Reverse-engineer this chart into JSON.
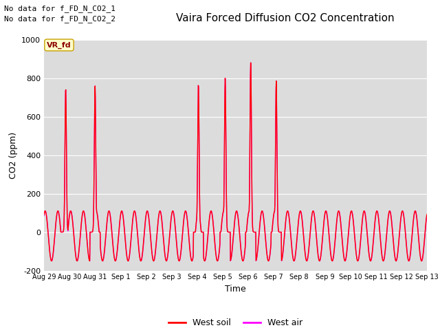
{
  "title": "Vaira Forced Diffusion CO2 Concentration",
  "xlabel": "Time",
  "ylabel": "CO2 (ppm)",
  "ylim": [
    -200,
    1000
  ],
  "bg_color": "#dcdcdc",
  "grid_color": "white",
  "annotation_lines": [
    "No data for f_FD_N_CO2_1",
    "No data for f_FD_N_CO2_2"
  ],
  "vr_fd_label": "VR_fd",
  "west_soil_color": "#ff0000",
  "west_air_color": "#ff00ff",
  "xtick_labels": [
    "Aug 29",
    "Aug 30",
    "Aug 31",
    "Sep 1",
    "Sep 2",
    "Sep 3",
    "Sep 4",
    "Sep 5",
    "Sep 6",
    "Sep 7",
    "Sep 8",
    "Sep 9",
    "Sep 10",
    "Sep 11",
    "Sep 12",
    "Sep 13"
  ],
  "legend_items": [
    {
      "label": "West soil",
      "color": "#ff0000",
      "linestyle": "-"
    },
    {
      "label": "West air",
      "color": "#ff00ff",
      "linestyle": "-"
    }
  ],
  "spike_times": [
    0.85,
    2.0,
    6.05,
    7.1,
    8.1,
    9.1
  ],
  "spike_heights": [
    750,
    760,
    770,
    800,
    880,
    785
  ],
  "yticks": [
    -200,
    0,
    200,
    400,
    600,
    800,
    1000
  ]
}
